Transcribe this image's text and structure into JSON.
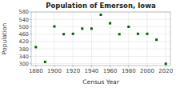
{
  "chart_data": {
    "type": "scatter",
    "title": "Population of Emerson, Iowa",
    "xlabel": "Census Year",
    "ylabel": "Population",
    "x": [
      1880,
      1890,
      1900,
      1910,
      1920,
      1930,
      1940,
      1950,
      1960,
      1970,
      1980,
      1990,
      2000,
      2010,
      2020
    ],
    "values": [
      390,
      310,
      502,
      460,
      462,
      490,
      490,
      565,
      519,
      460,
      500,
      462,
      462,
      430,
      300
    ],
    "color": "#006400",
    "marker": "square",
    "xlim": [
      1875,
      2025
    ],
    "ylim": [
      290,
      580
    ],
    "xticks": [
      1880,
      1900,
      1920,
      1940,
      1960,
      1980,
      2000,
      2020
    ],
    "yticks": [
      300,
      340,
      380,
      420,
      460,
      500,
      540,
      580
    ],
    "grid": true
  }
}
